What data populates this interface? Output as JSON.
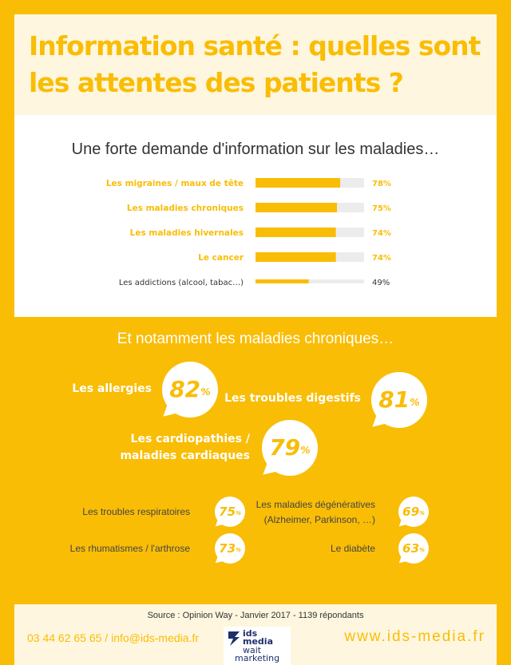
{
  "header": {
    "title_line1": "Information santé : quelles sont",
    "title_line2": "les attentes des patients ?"
  },
  "chart_data": [
    {
      "type": "bar",
      "title": "Une forte demande d'information sur les maladies…",
      "categories": [
        "Les migraines / maux de tête",
        "Les maladies chroniques",
        "Les maladies hivernales",
        "Le cancer",
        "Les addictions (alcool, tabac…)"
      ],
      "values": [
        78,
        75,
        74,
        74,
        49
      ],
      "value_labels": [
        "78%",
        "75%",
        "74%",
        "74%",
        "49%"
      ],
      "ylim": [
        0,
        100
      ],
      "bar_color": "#f9bd06",
      "track_color": "#ececec",
      "highlight_color": "#f9bd06",
      "plain_color": "#333333",
      "highlighted": [
        true,
        true,
        true,
        true,
        false
      ]
    }
  ],
  "chronic": {
    "heading": "Et notamment les maladies chroniques…",
    "major": [
      {
        "label": "Les allergies",
        "value": "82",
        "unit": "%"
      },
      {
        "label": "Les troubles digestifs",
        "value": "81",
        "unit": "%"
      },
      {
        "label_line1": "Les cardiopathies /",
        "label_line2": "maladies cardiaques",
        "value": "79",
        "unit": "%"
      }
    ],
    "minor": [
      {
        "label": "Les troubles respiratoires",
        "value": "75",
        "unit": "%"
      },
      {
        "label_line1": "Les maladies dégénératives",
        "label_line2": "(Alzheimer, Parkinson, …)",
        "value": "69",
        "unit": "%"
      },
      {
        "label": "Les rhumatismes / l'arthrose",
        "value": "73",
        "unit": "%"
      },
      {
        "label": "Le diabète",
        "value": "63",
        "unit": "%"
      }
    ]
  },
  "footer": {
    "source": "Source : Opinion Way - Janvier 2017 - 1139 répondants",
    "contact": "03 44 62 65 65 / info@ids-media.fr",
    "website": "www.ids-media.fr",
    "logo_line1": "ids",
    "logo_line2": "media",
    "logo_line3": "wait",
    "logo_line4": "marketing",
    "logo_color": "#1e2f6b"
  }
}
